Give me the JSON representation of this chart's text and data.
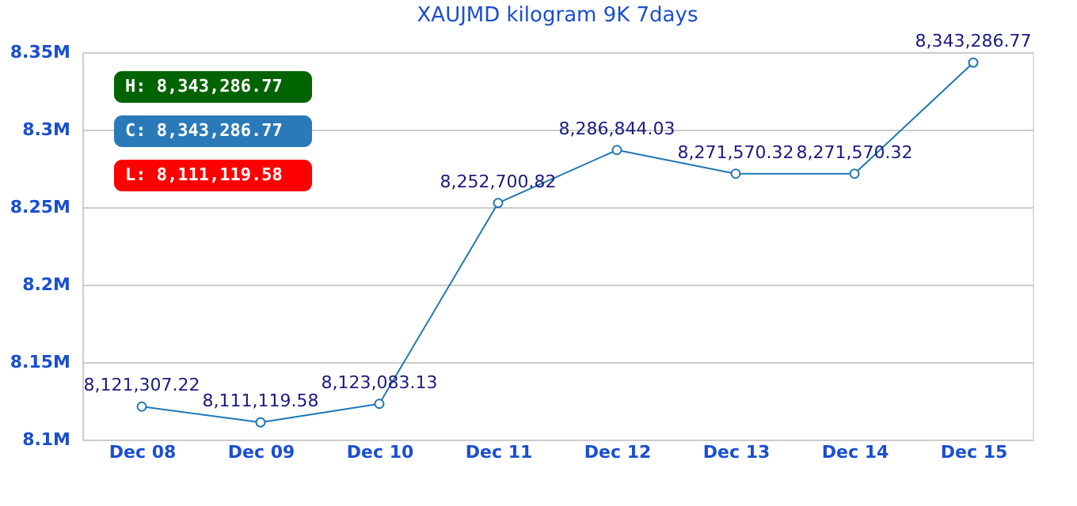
{
  "chart_data": {
    "type": "line",
    "title": "XAUJMD kilogram 9K 7days",
    "categories": [
      "Dec 08",
      "Dec 09",
      "Dec 10",
      "Dec 11",
      "Dec 12",
      "Dec 13",
      "Dec 14",
      "Dec 15"
    ],
    "series": [
      {
        "color": "#1f77b4",
        "values": [
          8121307.22,
          8111119.58,
          8123083.13,
          8252700.82,
          8286844.03,
          8271570.32,
          8271570.32,
          8343286.77
        ],
        "value_labels": [
          "8,121,307.22",
          "8,111,119.58",
          "8,123,083.13",
          "8,252,700.82",
          "8,286,844.03",
          "8,271,570.32",
          "8,271,570.32",
          "8,343,286.77"
        ]
      }
    ],
    "ylim": [
      8100000,
      8350000
    ],
    "yticks": [
      {
        "value": 8100000,
        "label": "8.1M"
      },
      {
        "value": 8150000,
        "label": "8.15M"
      },
      {
        "value": 8200000,
        "label": "8.2M"
      },
      {
        "value": 8250000,
        "label": "8.25M"
      },
      {
        "value": 8300000,
        "label": "8.3M"
      },
      {
        "value": 8350000,
        "label": "8.35M"
      }
    ],
    "grid": "y",
    "marker": "circle",
    "line_style": "solid",
    "annotations": [
      "H: 8,343,286.77",
      "C: 8,343,286.77",
      "L: 8,111,119.58"
    ]
  }
}
